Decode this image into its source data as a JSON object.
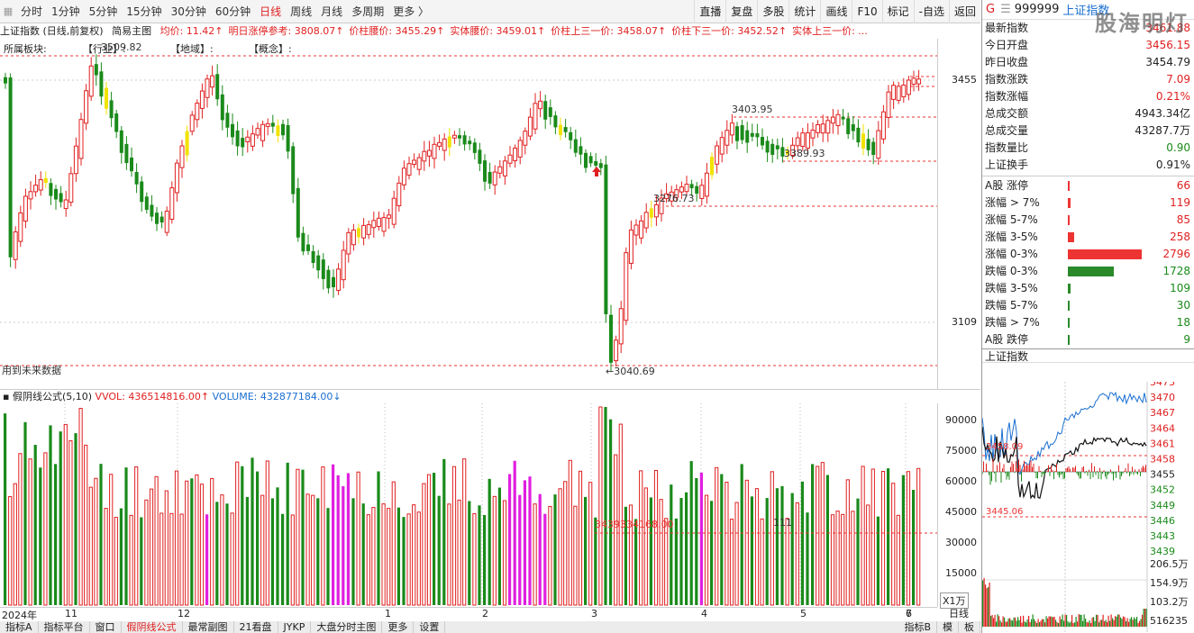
{
  "toolbar": {
    "left_items": [
      "分时",
      "1分钟",
      "5分钟",
      "15分钟",
      "30分钟",
      "60分钟",
      "日线",
      "周线",
      "月线",
      "多周期",
      "更多 〉"
    ],
    "active": "日线",
    "right_items": [
      "直播",
      "复盘",
      "多股",
      "统计",
      "画线",
      "F10",
      "标记",
      "-自选",
      "返回"
    ]
  },
  "info_bar": {
    "title": "上证指数 (日线,前复权)",
    "mode": "简易主图",
    "items": [
      {
        "text": "均价: 11.42↑",
        "cls": "red"
      },
      {
        "text": "明日涨停参考: 3808.07↑",
        "cls": "red"
      },
      {
        "text": "价柱腰价: 3455.29↑",
        "cls": "red"
      },
      {
        "text": "实体腰价: 3459.01↑",
        "cls": "red"
      },
      {
        "text": "价柱上三一价: 3458.07↑",
        "cls": "red"
      },
      {
        "text": "价柱下三一价: 3452.52↑",
        "cls": "red"
      },
      {
        "text": "实体上三一价: ...",
        "cls": "red"
      }
    ]
  },
  "sectors": {
    "label": "所属板块:",
    "industry": "【行业】:",
    "region": "【地域】:",
    "concept": "【概念】:"
  },
  "price_chart": {
    "price_ticks": [
      "3455",
      "3109"
    ],
    "annotations": [
      {
        "text": "3509.82"
      },
      {
        "text": "3403.95"
      },
      {
        "text": "3389.93"
      },
      {
        "text": "3276.73"
      },
      {
        "text": "←3040.69"
      }
    ],
    "future_label": "用到未来数据"
  },
  "volume_chart": {
    "header": {
      "name": "假阴线公式(5,10)",
      "vvol": "VVOL: 436514816.00↑",
      "volume": "VOLUME: 432877184.00↓"
    },
    "ticks": [
      "90000",
      "75000",
      "60000",
      "45000",
      "30000",
      "15000"
    ],
    "unit": "X1万",
    "annotations": [
      "3439334168.00",
      "111"
    ]
  },
  "date_axis": [
    "2024年",
    "11",
    "12",
    "1",
    "2",
    "3",
    "4",
    "5",
    "6",
    "7"
  ],
  "period": "日线",
  "bottom_tabs": [
    "指标A",
    "指标平台",
    "窗口",
    "假阴线公式",
    "最常副图",
    "21看盘",
    "JYKP",
    "大盘分时主图",
    "更多",
    "设置"
  ],
  "bottom_tabs_right": [
    "指标B",
    "模",
    "板"
  ],
  "bottom_active": "假阴线公式",
  "right_panel": {
    "code": "999999",
    "name": "上证指数",
    "watermark": "股海明灯",
    "stats": [
      {
        "label": "最新指数",
        "value": "3461.88",
        "cls": "red"
      },
      {
        "label": "今日开盘",
        "value": "3456.15",
        "cls": "red"
      },
      {
        "label": "昨日收盘",
        "value": "3454.79",
        "cls": ""
      },
      {
        "label": "指数涨跌",
        "value": "7.09",
        "cls": "red"
      },
      {
        "label": "指数涨幅",
        "value": "0.21%",
        "cls": "red"
      },
      {
        "label": "总成交额",
        "value": "4943.34亿",
        "cls": ""
      },
      {
        "label": "总成交量",
        "value": "43287.7万",
        "cls": ""
      },
      {
        "label": "指数量比",
        "value": "0.90",
        "cls": "green"
      },
      {
        "label": "上证换手",
        "value": "0.91%",
        "cls": ""
      }
    ],
    "breadth": [
      {
        "label": "A股 涨停",
        "value": "66",
        "color": "#e33",
        "frac": 0.02,
        "cls": "red"
      },
      {
        "label": "涨幅 > 7%",
        "value": "119",
        "color": "#e33",
        "frac": 0.04,
        "cls": "red"
      },
      {
        "label": "涨幅 5-7%",
        "value": "85",
        "color": "#e33",
        "frac": 0.03,
        "cls": "red"
      },
      {
        "label": "涨幅 3-5%",
        "value": "258",
        "color": "#e33",
        "frac": 0.09,
        "cls": "red"
      },
      {
        "label": "涨幅 0-3%",
        "value": "2796",
        "color": "#e33",
        "frac": 1.0,
        "cls": "red"
      },
      {
        "label": "跌幅 0-3%",
        "value": "1728",
        "color": "#2a8a2a",
        "frac": 0.62,
        "cls": "green"
      },
      {
        "label": "跌幅 3-5%",
        "value": "109",
        "color": "#2a8a2a",
        "frac": 0.04,
        "cls": "green"
      },
      {
        "label": "跌幅 5-7%",
        "value": "30",
        "color": "#2a8a2a",
        "frac": 0.01,
        "cls": "green"
      },
      {
        "label": "跌幅 > 7%",
        "value": "18",
        "color": "#2a8a2a",
        "frac": 0.01,
        "cls": "green"
      },
      {
        "label": "A股 跌停",
        "value": "9",
        "color": "#2a8a2a",
        "frac": 0.005,
        "cls": "green"
      }
    ],
    "mini_title": "上证指数",
    "mini_ticks": [
      "3473",
      "3470",
      "3467",
      "3464",
      "3461",
      "3458",
      "3455",
      "3452",
      "3449",
      "3446",
      "3443",
      "3439"
    ],
    "mini_vol_ticks": [
      "206.5万",
      "154.9万",
      "103.2万",
      "516235"
    ],
    "mini_labels": [
      "3458.09",
      "3445.06"
    ]
  }
}
